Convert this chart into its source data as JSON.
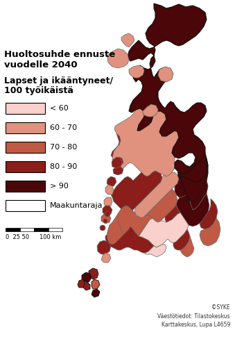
{
  "title_line1": "Huoltosuhde ennuste",
  "title_line2": "vuodelle 2040",
  "subtitle_line1": "Lapset ja ikääntyneet/",
  "subtitle_line2": "100 työikäistä",
  "legend_labels": [
    "< 60",
    "60 - 70",
    "70 - 80",
    "80 - 90",
    "> 90",
    "Maakuntaraja"
  ],
  "legend_colors": [
    "#f9d0cb",
    "#e0927f",
    "#c05a45",
    "#8b1e1a",
    "#4a0608",
    "#ffffff"
  ],
  "border_major": "#111111",
  "border_minor": "#666666",
  "background": "#ffffff",
  "scale_text": "0  25 50      100 km",
  "copyright_text": "©SYKE\nVäestötiedot: Tilastokeskus\nKarttakeskus, Lupa L4659",
  "figsize": [
    3.39,
    4.88
  ],
  "dpi": 100
}
